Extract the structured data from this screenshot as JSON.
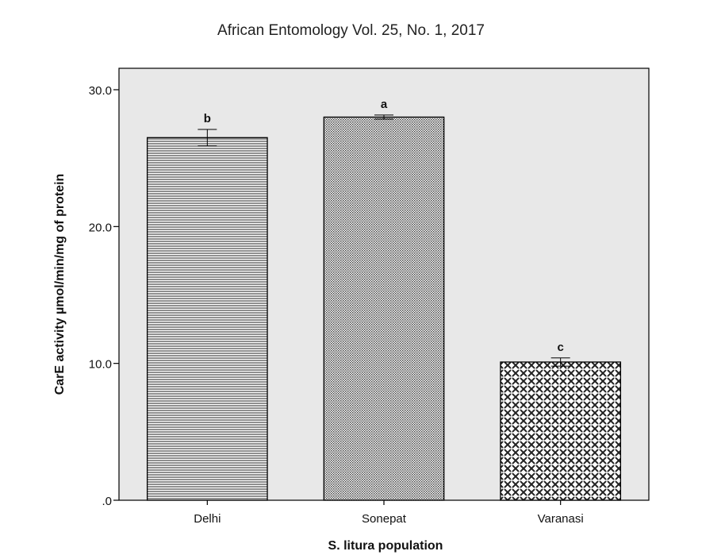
{
  "header": {
    "text": "African Entomology Vol. 25, No. 1, 2017"
  },
  "chart_data": {
    "type": "bar",
    "categories": [
      "Delhi",
      "Sonepat",
      "Varanasi"
    ],
    "values": [
      26.5,
      28.0,
      10.1
    ],
    "errors": [
      0.6,
      0.15,
      0.3
    ],
    "significance_labels": [
      "b",
      "a",
      "c"
    ],
    "bar_patterns": [
      "horizontal-lines",
      "fine-dots",
      "crosshatch-plus"
    ],
    "xlabel": "S. litura population",
    "ylabel": "CarE activity µmol/min/mg of protein",
    "ylim": [
      0,
      30.0
    ],
    "yticks": [
      0,
      10.0,
      20.0,
      30.0
    ],
    "ytick_labels": [
      ".0",
      "10.0",
      "20.0",
      "30.0"
    ],
    "grid": false,
    "colors": {
      "plot_background": "#e8e8e8",
      "bar_fill": "#ffffff",
      "stroke": "#000000"
    }
  }
}
